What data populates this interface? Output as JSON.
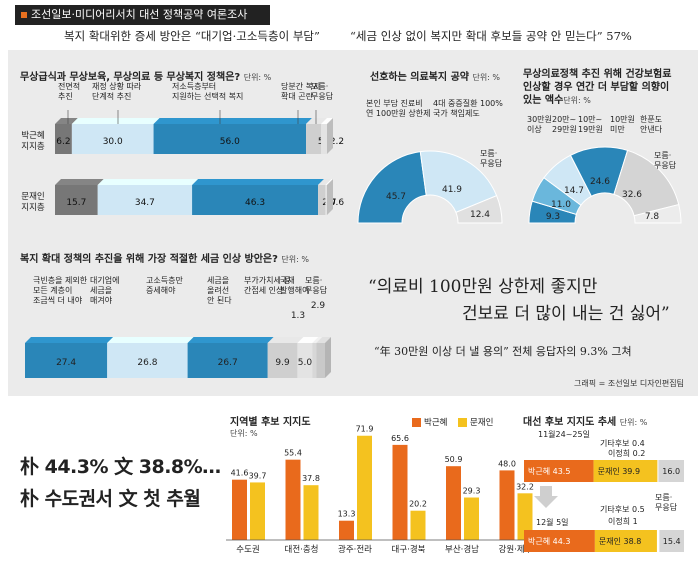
{
  "header": {
    "title": "조선일보·미디어리서치 대선 정책공약 여론조사",
    "sub1": "복지 확대위한 증세 방안은 “대기업·고소득층이 부담”",
    "sub2": "“세금 인상 없이 복지만 확대  후보들 공약 안 믿는다” 57%"
  },
  "unit": "단위: %",
  "chart_data": [
    {
      "type": "bar",
      "title": "무상급식과 무상보육, 무상의료 등 무상복지 정책은?",
      "unit": "단위: %",
      "categories": [
        "전면적 추진",
        "재정 상황 따라 단계적 추진",
        "저소득층부터 지원하는 선택적 복지",
        "당분간 복지 확대 곤란",
        "모름·무응답"
      ],
      "series": [
        {
          "name": "박근혜 지지층",
          "values": [
            6.2,
            30.0,
            56.0,
            5.5,
            2.2
          ]
        },
        {
          "name": "문재인 지지층",
          "values": [
            15.7,
            34.7,
            46.3,
            2.7,
            0.6
          ]
        }
      ]
    },
    {
      "type": "bar",
      "title": "복지 확대 정책의 추진을 위해 가장 적절한 세금 인상 방안은?",
      "unit": "단위: %",
      "categories": [
        "극빈층을 제외한 모든 계층이 조금씩 더 내야",
        "대기업에 세금을 매겨야",
        "고소득층만 증세해야",
        "세금을 올려선 안 된다",
        "부가가치세 등 간접세 인상",
        "국채 발행해야",
        "모름·무응답"
      ],
      "values": [
        27.4,
        26.8,
        26.7,
        9.9,
        5.0,
        1.3,
        2.9
      ]
    },
    {
      "type": "pie",
      "title": "선호하는 의료복지 공약",
      "unit": "단위: %",
      "categories": [
        "본인 부담 진료비 연 100만원 상한제",
        "4대 중증질환 100% 국가 책임제도",
        "모름·무응답"
      ],
      "values": [
        45.7,
        41.9,
        12.4
      ]
    },
    {
      "type": "pie",
      "title": "무상의료정책 추진 위해 건강보험료 인상할 경우 연간 더 부담할 의향이 있는 액수",
      "unit": "단위: %",
      "categories": [
        "30만원 이상",
        "20만~29만원",
        "10만~19만원",
        "10만원 미만",
        "한푼도 안 낸다",
        "모름·무응답"
      ],
      "values": [
        9.3,
        11.0,
        14.7,
        24.6,
        32.6,
        7.8
      ]
    },
    {
      "type": "bar",
      "title": "지역별 후보 지지도",
      "unit": "단위: %",
      "categories": [
        "수도권",
        "대전·충청",
        "광주·전라",
        "대구·경북",
        "부산·경남",
        "강원·제주"
      ],
      "series": [
        {
          "name": "박근혜",
          "values": [
            41.6,
            55.4,
            13.3,
            65.6,
            50.9,
            48.0
          ]
        },
        {
          "name": "문재인",
          "values": [
            39.7,
            37.8,
            71.9,
            20.2,
            29.3,
            32.2
          ]
        }
      ]
    },
    {
      "type": "bar",
      "title": "대선 후보 지지도 추세",
      "unit": "단위: %",
      "categories": [
        "11월24~25일",
        "12월 5일"
      ],
      "series": [
        {
          "name": "박근혜",
          "values": [
            43.5,
            44.3
          ]
        },
        {
          "name": "문재인",
          "values": [
            39.9,
            38.8
          ]
        },
        {
          "name": "기타후보",
          "values": [
            0.4,
            0.5
          ]
        },
        {
          "name": "이정희",
          "values": [
            0.2,
            1.0
          ]
        },
        {
          "name": "모름·무응답",
          "values": [
            16.0,
            15.4
          ]
        }
      ]
    }
  ],
  "labels": {
    "welfare_q": "무상급식과 무상보육, 무상의료 등 무상복지 정책은?",
    "welfare_cats": [
      "전면적\n추진",
      "재정 상황 따라\n단계적 추진",
      "저소득층부터\n지원하는 선택적 복지",
      "당분간 복지\n확대 곤란",
      "모름·\n무응답"
    ],
    "park_row": "박근혜\n지지층",
    "moon_row": "문재인\n지지층",
    "tax_q": "복지 확대 정책의 추진을 위해 가장 적절한 세금 인상 방안은?",
    "tax_cats": [
      "극빈층을 제외한\n모든 계층이\n조금씩 더 내야",
      "대기업에\n세금을\n매겨야",
      "고소득층만\n증세해야",
      "세금을\n올려선\n안 된다",
      "부가가치세 등\n간접세 인상",
      "국채\n발행해야",
      "모름·\n무응답"
    ],
    "med_q": "선호하는 의료복지 공약",
    "med_cats": [
      "본인 부담 진료비\n연 100만원 상한제",
      "4대 중증질환 100%\n국가 책임제도",
      "모름·\n무응답"
    ],
    "pay_q": "무상의료정책 추진 위해 건강보험료\n인상할 경우 연간 더 부담할 의향이\n있는 액수",
    "pay_cats": [
      "30만원\n이상",
      "20만~\n29만원",
      "10만~\n19만원",
      "10만원\n미만",
      "한푼도\n안낸다",
      "모름·\n무응답"
    ],
    "quote1a": "“의료비 100만원 상한제 좋지만",
    "quote1b": "건보료 더 많이 내는 건 싫어”",
    "quote2": "“年 30만원 이상 더 낼 용의” 전체 응답자의 9.3% 그쳐",
    "credit": "그래픽 = 조선일보 디자인편집팀",
    "headline1": "朴 44.3% 文 38.8%…",
    "headline2": "朴 수도권서 文 첫 추월",
    "region_title": "지역별 후보 지지도",
    "legend_park": "박근혜",
    "legend_moon": "문재인",
    "trend_title": "대선 후보 지지도 추세",
    "trend_date1": "11월24~25일",
    "trend_date2": "12월 5일",
    "trend_other": "기타후보",
    "trend_lee": "이정희",
    "trend_unknown": "모름·\n무응답"
  },
  "colors": {
    "dark_blue": "#2a86b8",
    "mid_blue": "#6ab7dc",
    "light_blue": "#cfe7f5",
    "dark_gray": "#777777",
    "light_gray": "#cfcfcf",
    "orange": "#e96a1c",
    "yellow": "#f4c21f"
  }
}
